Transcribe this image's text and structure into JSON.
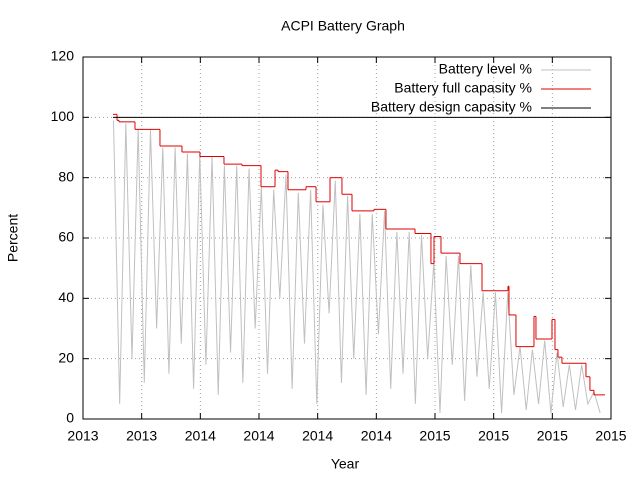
{
  "chart_data": {
    "type": "line",
    "title": "ACPI Battery Graph",
    "xlabel": "Year",
    "ylabel": "Percent",
    "xlim": [
      0,
      9
    ],
    "ylim": [
      0,
      120
    ],
    "xticks": [
      {
        "value": 0,
        "label": "2013"
      },
      {
        "value": 1,
        "label": "2013"
      },
      {
        "value": 2,
        "label": "2014"
      },
      {
        "value": 3,
        "label": "2014"
      },
      {
        "value": 4,
        "label": "2014"
      },
      {
        "value": 5,
        "label": "2014"
      },
      {
        "value": 6,
        "label": "2015"
      },
      {
        "value": 7,
        "label": "2015"
      },
      {
        "value": 8,
        "label": "2015"
      },
      {
        "value": 9,
        "label": "2015"
      }
    ],
    "yticks": [
      0,
      20,
      40,
      60,
      80,
      100,
      120
    ],
    "grid": true,
    "legend": "top right",
    "series": [
      {
        "name": "Battery level %",
        "color": "#c0c0c0",
        "style": "line",
        "x": [
          0.52,
          0.625,
          0.73,
          0.835,
          0.94,
          1.045,
          1.15,
          1.255,
          1.36,
          1.465,
          1.57,
          1.675,
          1.78,
          1.885,
          1.99,
          2.095,
          2.2,
          2.305,
          2.41,
          2.515,
          2.62,
          2.725,
          2.83,
          2.935,
          3.04,
          3.145,
          3.25,
          3.355,
          3.46,
          3.565,
          3.67,
          3.775,
          3.88,
          3.985,
          4.09,
          4.195,
          4.3,
          4.405,
          4.51,
          4.615,
          4.72,
          4.825,
          4.93,
          5.035,
          5.14,
          5.245,
          5.35,
          5.455,
          5.56,
          5.665,
          5.77,
          5.875,
          5.98,
          6.085,
          6.19,
          6.295,
          6.4,
          6.505,
          6.61,
          6.715,
          6.82,
          6.925,
          7.03,
          7.135,
          7.24,
          7.345,
          7.45,
          7.555,
          7.66,
          7.765,
          7.87,
          7.975,
          8.08,
          8.185,
          8.29,
          8.395,
          8.5,
          8.605,
          8.71,
          8.815
        ],
        "values": [
          99,
          5,
          98,
          20,
          96,
          12,
          96,
          30,
          90,
          15,
          90,
          25,
          88,
          10,
          88,
          18,
          87,
          8,
          84,
          22,
          84,
          12,
          83,
          30,
          77,
          15,
          76,
          40,
          81,
          10,
          75,
          25,
          76,
          5,
          71,
          35,
          79,
          12,
          74,
          20,
          68,
          8,
          68,
          28,
          69,
          10,
          62,
          15,
          62,
          5,
          61,
          20,
          52,
          2,
          54,
          18,
          54,
          6,
          51,
          14,
          42,
          10,
          42,
          2,
          42,
          8,
          24,
          3,
          23,
          5,
          26,
          2,
          22,
          4,
          18,
          3,
          18,
          5,
          9,
          2
        ]
      },
      {
        "name": "Battery full capasity %",
        "color": "#e00000",
        "style": "step",
        "x": [
          0.511,
          0.58,
          0.614,
          0.835,
          0.886,
          1.312,
          1.687,
          1.994,
          2.403,
          2.71,
          3.034,
          3.273,
          3.324,
          3.494,
          3.801,
          3.972,
          4.176,
          4.21,
          4.414,
          4.585,
          4.96,
          5.164,
          5.659,
          5.931,
          5.983,
          6.102,
          6.426,
          6.801,
          7.244,
          7.261,
          7.38,
          7.687,
          7.721,
          7.994,
          8.045,
          8.096,
          8.164,
          8.573,
          8.641,
          8.709,
          8.897
        ],
        "values": [
          101,
          99,
          98.5,
          98.5,
          96,
          90.5,
          88.5,
          87,
          84.5,
          84,
          77,
          82.5,
          82,
          76,
          77,
          72,
          72,
          80,
          74.5,
          69,
          69.5,
          63,
          61.5,
          51.5,
          60.5,
          55,
          51.5,
          42.5,
          44,
          34.5,
          24,
          34,
          26.5,
          33,
          23,
          20.5,
          18.5,
          14,
          9.5,
          8,
          8
        ]
      },
      {
        "name": "Battery design capasity %",
        "color": "#000000",
        "style": "line",
        "x": [
          0.511,
          9
        ],
        "values": [
          100,
          100
        ]
      }
    ]
  }
}
